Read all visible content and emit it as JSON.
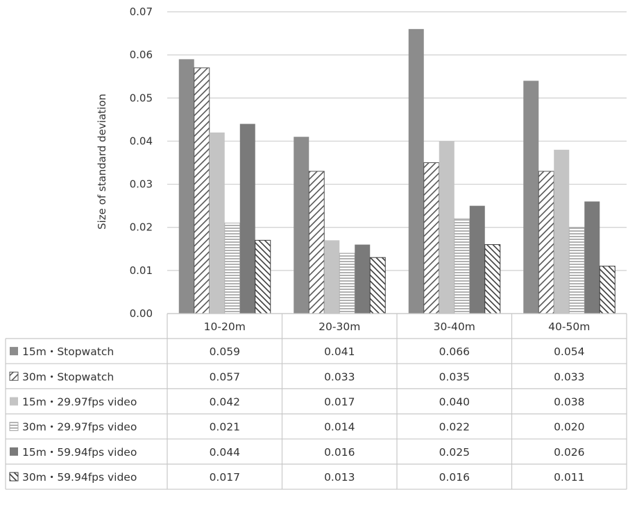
{
  "chart_data": {
    "type": "bar",
    "ylabel": "Size of standard deviation",
    "ylim": [
      0,
      0.07
    ],
    "yticks": [
      "0.00",
      "0.01",
      "0.02",
      "0.03",
      "0.04",
      "0.05",
      "0.06",
      "0.07"
    ],
    "categories": [
      "10-20m",
      "20-30m",
      "30-40m",
      "40-50m"
    ],
    "grid": true,
    "legend": "data-table-below",
    "series": [
      {
        "name": "15m・Stopwatch",
        "values": [
          0.059,
          0.041,
          0.066,
          0.054
        ],
        "display": [
          "0.059",
          "0.041",
          "0.066",
          "0.054"
        ],
        "color": "#8c8c8c",
        "pattern": "solid"
      },
      {
        "name": "30m・Stopwatch",
        "values": [
          0.057,
          0.033,
          0.035,
          0.033
        ],
        "display": [
          "0.057",
          "0.033",
          "0.035",
          "0.033"
        ],
        "color": "#555555",
        "pattern": "diag-up"
      },
      {
        "name": "15m・29.97fps video",
        "values": [
          0.042,
          0.017,
          0.04,
          0.038
        ],
        "display": [
          "0.042",
          "0.017",
          "0.040",
          "0.038"
        ],
        "color": "#c4c4c4",
        "pattern": "solid"
      },
      {
        "name": "30m・29.97fps video",
        "values": [
          0.021,
          0.014,
          0.022,
          0.02
        ],
        "display": [
          "0.021",
          "0.014",
          "0.022",
          "0.020"
        ],
        "color": "#a8a8a8",
        "pattern": "horizontal"
      },
      {
        "name": "15m・59.94fps video",
        "values": [
          0.044,
          0.016,
          0.025,
          0.026
        ],
        "display": [
          "0.044",
          "0.016",
          "0.025",
          "0.026"
        ],
        "color": "#7a7a7a",
        "pattern": "solid"
      },
      {
        "name": "30m・59.94fps video",
        "values": [
          0.017,
          0.013,
          0.016,
          0.011
        ],
        "display": [
          "0.017",
          "0.013",
          "0.016",
          "0.011"
        ],
        "color": "#3a3a3a",
        "pattern": "diag-down"
      }
    ]
  }
}
